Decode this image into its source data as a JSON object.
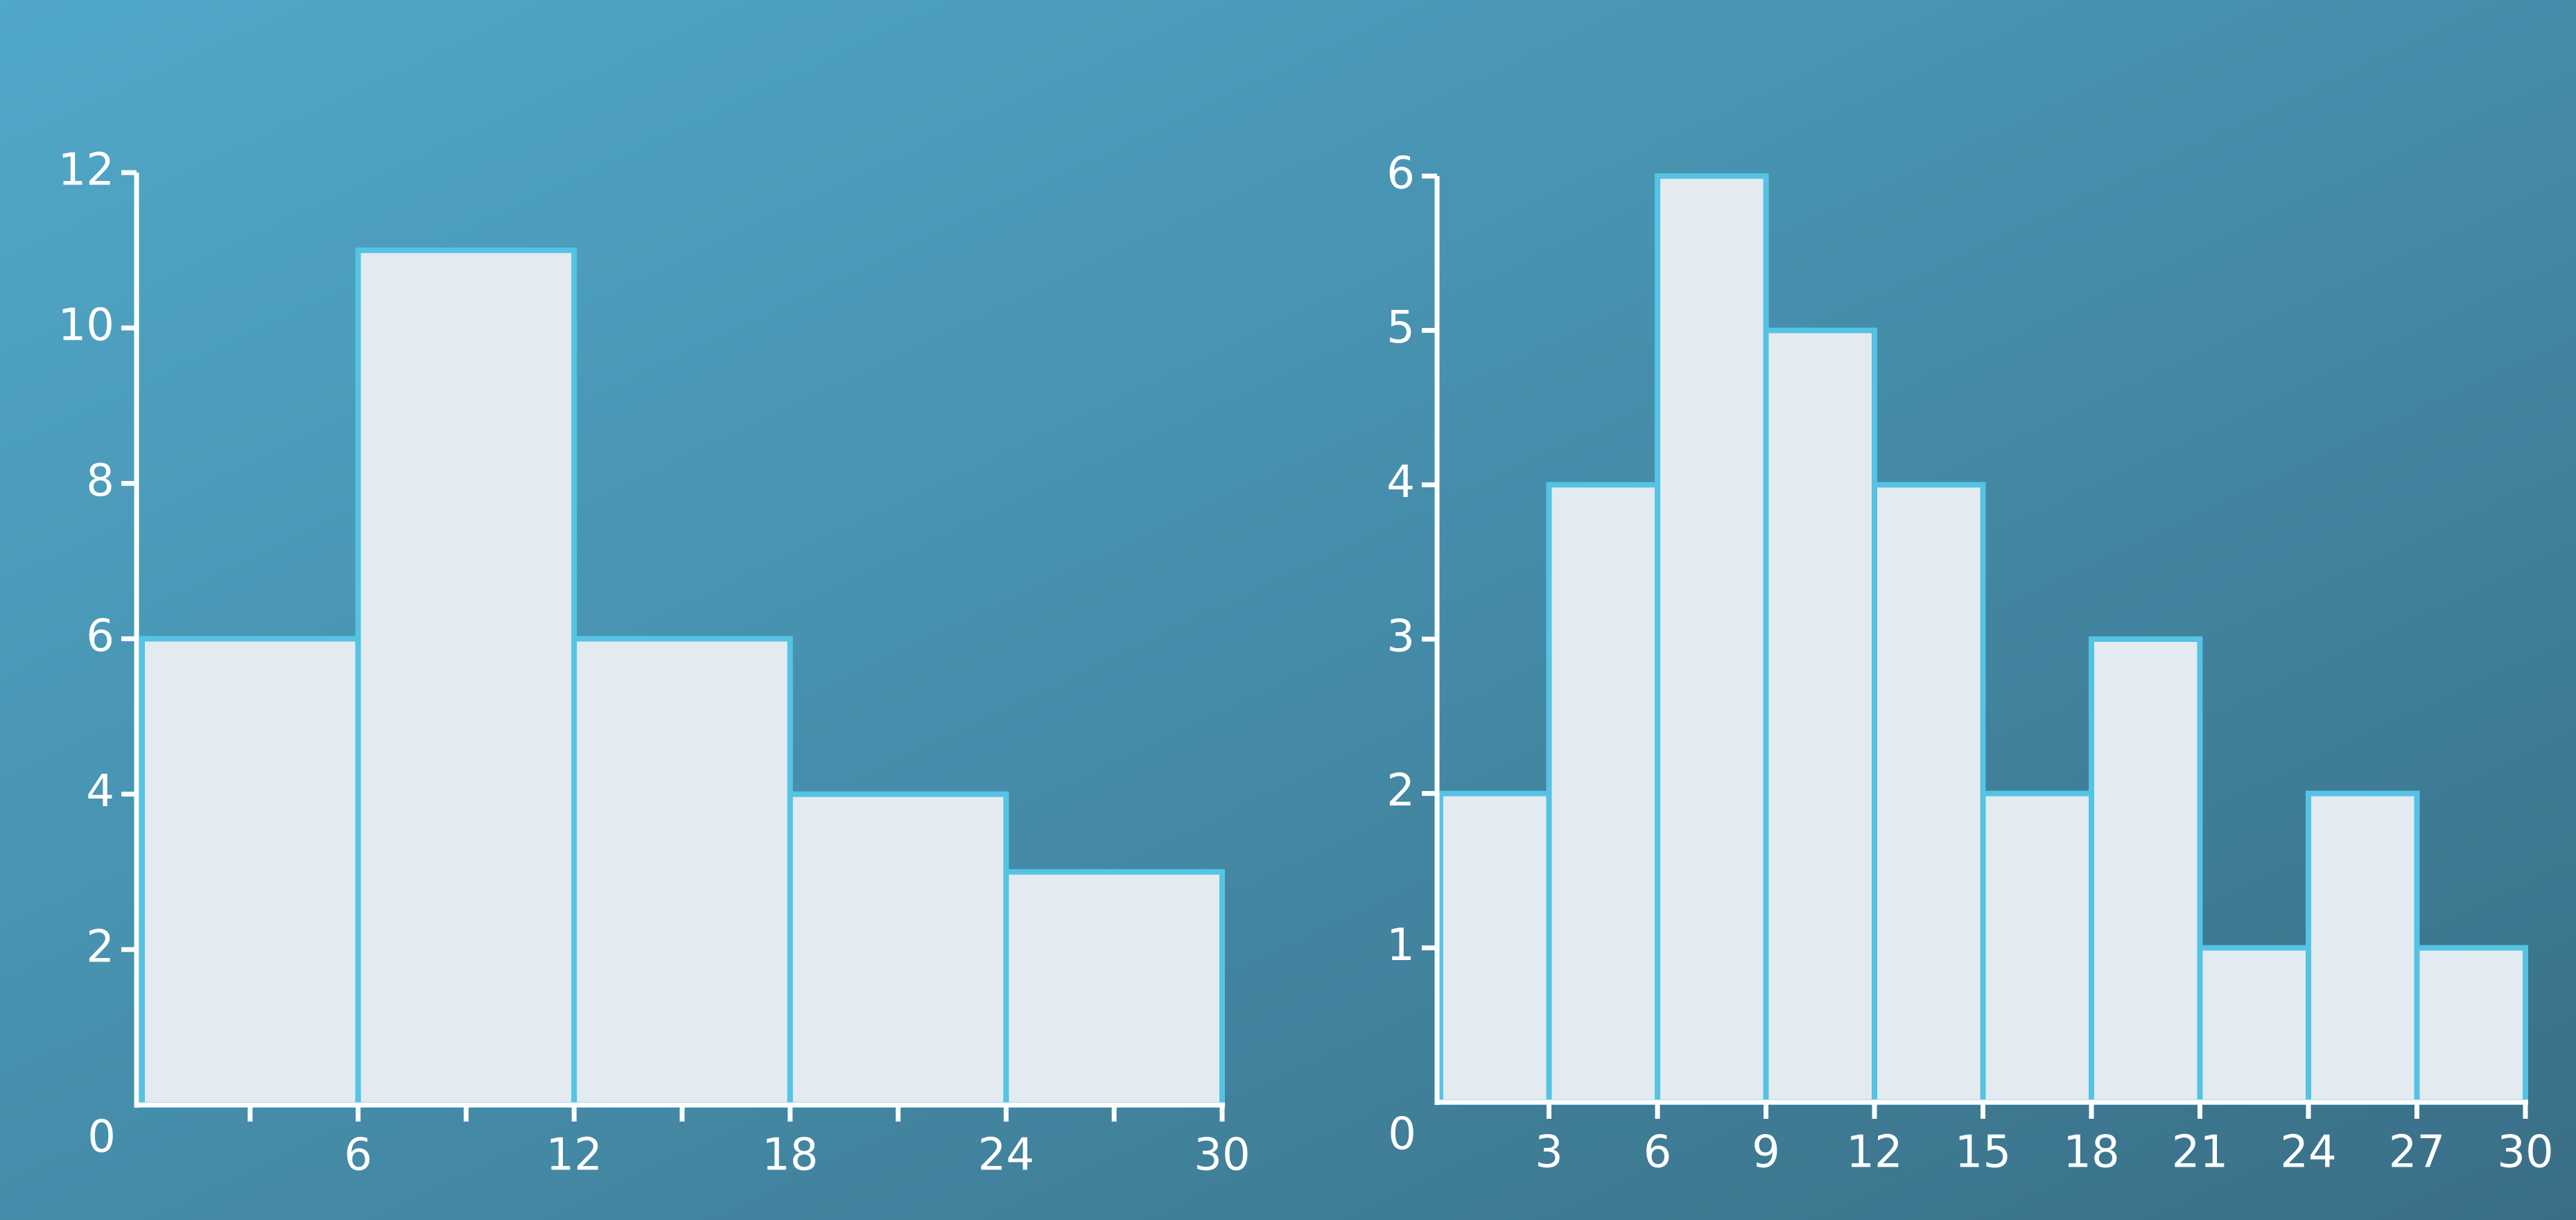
{
  "chart_data": [
    {
      "type": "histogram",
      "bins": [
        0,
        6,
        12,
        18,
        24,
        30
      ],
      "counts": [
        6,
        11,
        6,
        4,
        3
      ],
      "xlim": [
        0,
        30
      ],
      "ylim": [
        0,
        12
      ],
      "xticks": [
        6,
        12,
        18,
        24,
        30
      ],
      "xminorticks": [
        3,
        9,
        15,
        21,
        27
      ],
      "yticks": [
        0,
        2,
        4,
        6,
        8,
        10,
        12
      ],
      "color": "#e3ebf1",
      "edgecolor": "#55c3e3"
    },
    {
      "type": "histogram",
      "bins": [
        0,
        3,
        6,
        9,
        12,
        15,
        18,
        21,
        24,
        27,
        30
      ],
      "counts": [
        2,
        4,
        6,
        5,
        4,
        2,
        3,
        1,
        2,
        1
      ],
      "xlim": [
        0,
        30
      ],
      "ylim": [
        0,
        6
      ],
      "xticks": [
        3,
        6,
        9,
        12,
        15,
        18,
        21,
        24,
        27,
        30
      ],
      "xminorticks": [],
      "yticks": [
        0,
        1,
        2,
        3,
        4,
        5,
        6
      ],
      "color": "#e3ebf1",
      "edgecolor": "#55c3e3"
    }
  ]
}
